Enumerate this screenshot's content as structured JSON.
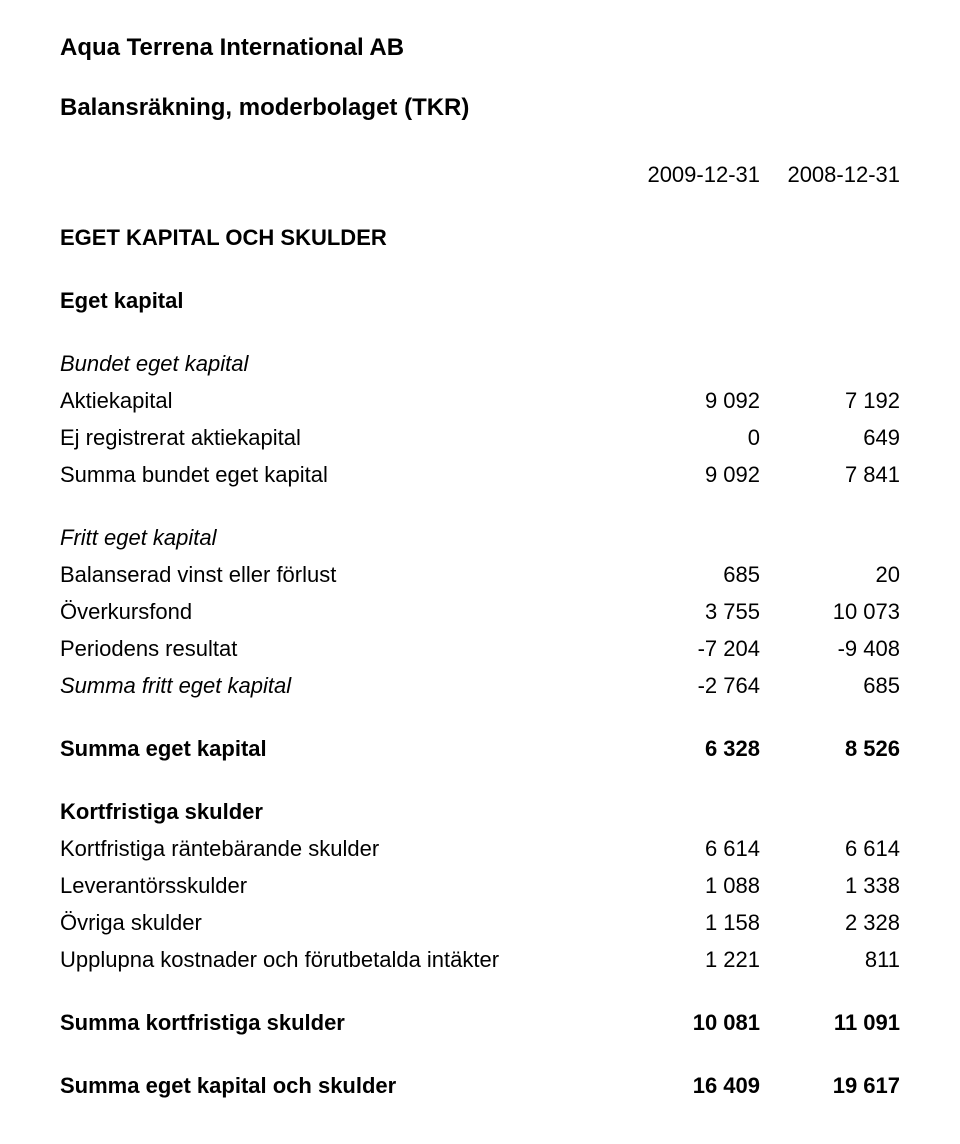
{
  "company": "Aqua Terrena International AB",
  "report_title": "Balansräkning, moderbolaget (TKR)",
  "periods": {
    "a": "2009-12-31",
    "b": "2008-12-31"
  },
  "sections": {
    "main_heading": "EGET KAPITAL OCH SKULDER",
    "eget_kapital": {
      "heading": "Eget kapital",
      "bundet_heading": "Bundet eget kapital",
      "aktiekapital": {
        "label": "Aktiekapital",
        "a": "9 092",
        "b": "7 192"
      },
      "ej_registrerat": {
        "label": "Ej registrerat aktiekapital",
        "a": "0",
        "b": "649"
      },
      "summa_bundet": {
        "label": "Summa bundet eget kapital",
        "a": "9 092",
        "b": "7 841"
      },
      "fritt_heading": "Fritt eget kapital",
      "balanserad": {
        "label": "Balanserad vinst eller förlust",
        "a": "685",
        "b": "20"
      },
      "overkurs": {
        "label": "Överkursfond",
        "a": "3 755",
        "b": "10 073"
      },
      "periodens": {
        "label": "Periodens resultat",
        "a": "-7 204",
        "b": "-9 408"
      },
      "summa_fritt": {
        "label": "Summa fritt eget kapital",
        "a": "-2 764",
        "b": "685"
      },
      "summa_eget": {
        "label": "Summa eget kapital",
        "a": "6 328",
        "b": "8 526"
      }
    },
    "kortfristiga": {
      "heading": "Kortfristiga skulder",
      "rantebarande": {
        "label": "Kortfristiga räntebärande skulder",
        "a": "6 614",
        "b": "6 614"
      },
      "leverantor": {
        "label": "Leverantörsskulder",
        "a": "1 088",
        "b": "1 338"
      },
      "ovriga": {
        "label": "Övriga skulder",
        "a": "1 158",
        "b": "2 328"
      },
      "upplupna": {
        "label": "Upplupna kostnader och förutbetalda intäkter",
        "a": "1 221",
        "b": "811"
      },
      "summa_kort": {
        "label": "Summa kortfristiga skulder",
        "a": "10 081",
        "b": "11 091"
      }
    },
    "summa_total": {
      "label": "Summa eget kapital och skulder",
      "a": "16 409",
      "b": "19 617"
    }
  }
}
